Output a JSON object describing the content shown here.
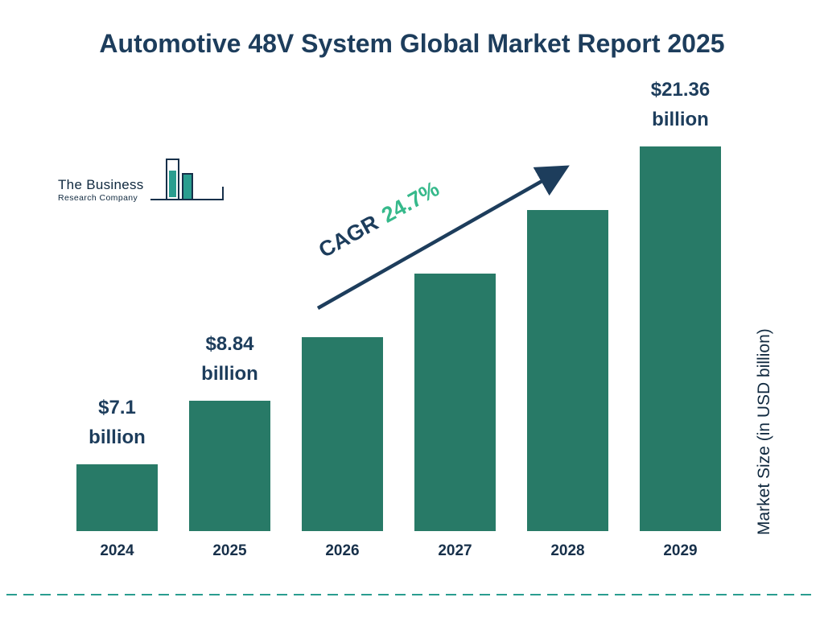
{
  "title": "Automotive 48V System Global Market Report 2025",
  "logo": {
    "line1": "The Business",
    "line2": "Research Company"
  },
  "cagr": {
    "prefix": "CAGR",
    "value": "24.7%"
  },
  "chart_data": {
    "type": "bar",
    "title": "Automotive 48V System Global Market Report 2025",
    "categories": [
      "2024",
      "2025",
      "2026",
      "2027",
      "2028",
      "2029"
    ],
    "values": [
      7.1,
      8.84,
      11.02,
      13.75,
      17.14,
      21.36
    ],
    "bar_labels": [
      "$7.1 billion",
      "$8.84 billion",
      null,
      null,
      null,
      "$21.36 billion"
    ],
    "unit": "USD billion",
    "ylabel": "Market Size (in USD billion)",
    "cagr": "24.7%",
    "legend": "none",
    "grid": "off",
    "bar_color": "#287a67",
    "title_color": "#1d3d5c",
    "accent_green": "#36b98b",
    "dash_line_color": "#2a9d8f"
  }
}
